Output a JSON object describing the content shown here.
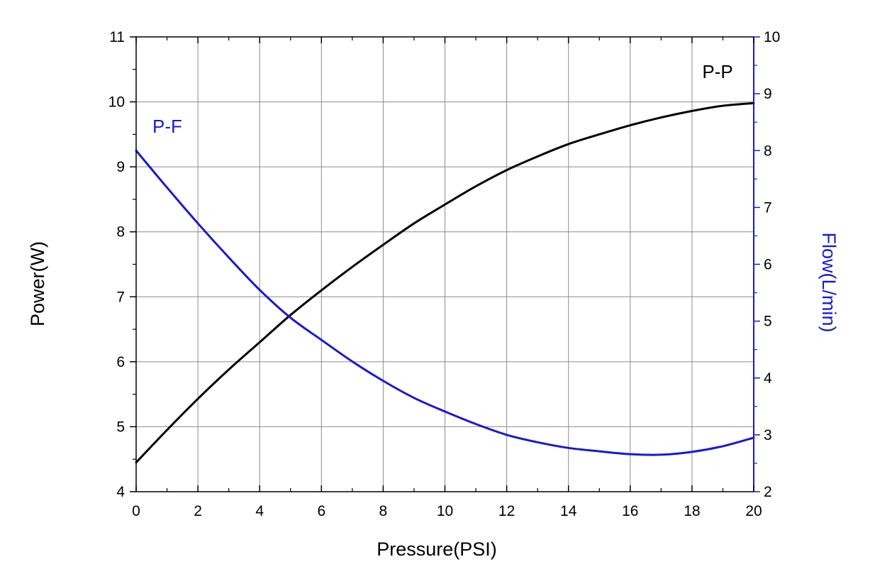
{
  "chart_data": {
    "type": "line",
    "xlabel": "Pressure(PSI)",
    "ylabel_left": "Power(W)",
    "ylabel_right": "Flow(L/min)",
    "xlim": [
      0,
      20
    ],
    "ylim_left": [
      4,
      11
    ],
    "ylim_right": [
      2,
      10
    ],
    "x_ticks": [
      0,
      2,
      4,
      6,
      8,
      10,
      12,
      14,
      16,
      18,
      20
    ],
    "y_left_ticks": [
      4,
      5,
      6,
      7,
      8,
      9,
      10,
      11
    ],
    "y_right_ticks": [
      2,
      3,
      4,
      5,
      6,
      7,
      8,
      9,
      10
    ],
    "grid": true,
    "series": [
      {
        "name": "P-P",
        "axis": "left",
        "color": "#000000",
        "x": [
          0,
          1,
          2,
          3,
          4,
          5,
          6,
          7,
          8,
          9,
          10,
          11,
          12,
          13,
          14,
          15,
          16,
          17,
          18,
          19,
          20
        ],
        "values": [
          4.45,
          4.95,
          5.43,
          5.88,
          6.3,
          6.72,
          7.1,
          7.46,
          7.8,
          8.13,
          8.42,
          8.7,
          8.95,
          9.16,
          9.35,
          9.5,
          9.64,
          9.76,
          9.86,
          9.94,
          9.98
        ]
      },
      {
        "name": "P-F",
        "axis": "right",
        "color": "#1a1acc",
        "x": [
          0,
          1,
          2,
          3,
          4,
          5,
          6,
          7,
          8,
          9,
          10,
          11,
          12,
          13,
          14,
          15,
          16,
          17,
          18,
          19,
          20
        ],
        "values": [
          8.0,
          7.35,
          6.72,
          6.12,
          5.55,
          5.06,
          4.67,
          4.29,
          3.95,
          3.65,
          3.41,
          3.19,
          3.0,
          2.87,
          2.77,
          2.71,
          2.66,
          2.65,
          2.7,
          2.8,
          2.95
        ]
      }
    ]
  }
}
